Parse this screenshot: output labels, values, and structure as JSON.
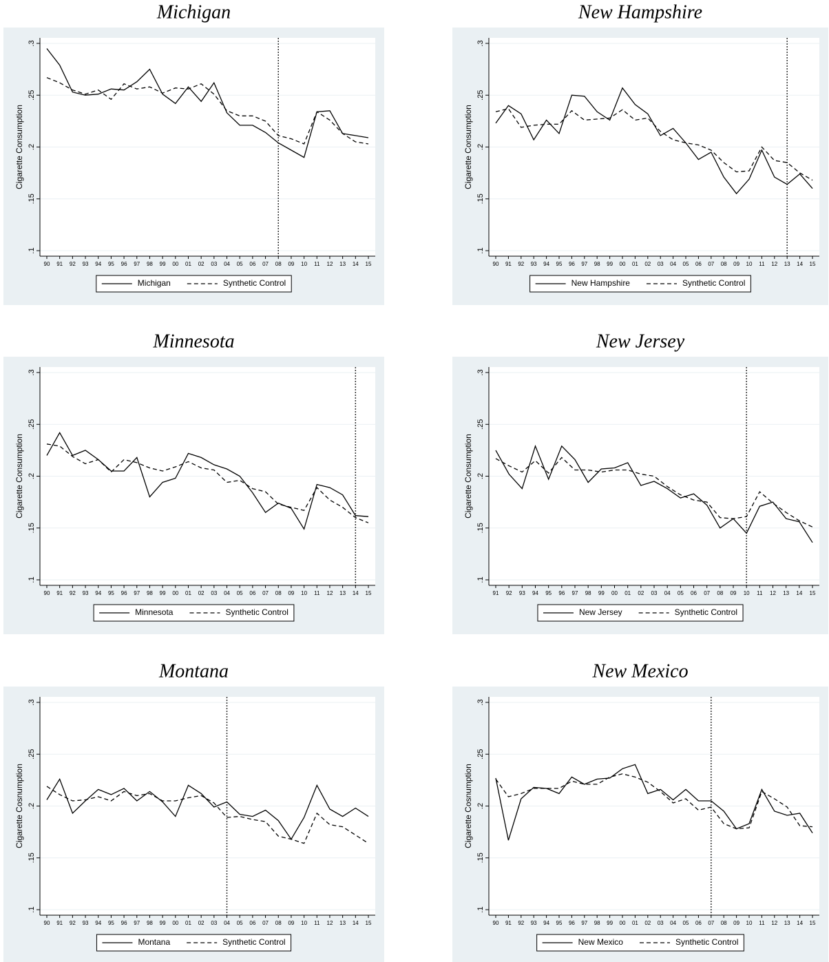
{
  "chart_data": [
    {
      "type": "line",
      "title": "Michigan",
      "ylabel": "Cigarette Consumption",
      "categories": [
        "90",
        "91",
        "92",
        "93",
        "94",
        "95",
        "96",
        "97",
        "98",
        "99",
        "00",
        "01",
        "02",
        "03",
        "04",
        "05",
        "06",
        "07",
        "08",
        "09",
        "10",
        "11",
        "12",
        "13",
        "14",
        "15"
      ],
      "series": [
        {
          "name": "Michigan",
          "color": "#000000",
          "line_style": "solid",
          "values": [
            0.295,
            0.279,
            0.253,
            0.25,
            0.251,
            0.256,
            0.255,
            0.263,
            0.275,
            0.251,
            0.242,
            0.258,
            0.244,
            0.262,
            0.233,
            0.221,
            0.221,
            0.214,
            0.204,
            0.197,
            0.19,
            0.234,
            0.235,
            0.213,
            0.211,
            0.209
          ]
        },
        {
          "name": "Synthetic Control",
          "color": "#000000",
          "line_style": "dashed",
          "values": [
            0.267,
            0.262,
            0.255,
            0.251,
            0.255,
            0.246,
            0.261,
            0.256,
            0.258,
            0.252,
            0.257,
            0.256,
            0.261,
            0.251,
            0.235,
            0.23,
            0.23,
            0.225,
            0.211,
            0.208,
            0.203,
            0.234,
            0.226,
            0.213,
            0.205,
            0.203
          ]
        }
      ],
      "ylim": [
        0.0947,
        0.3053
      ],
      "yticks": [
        {
          "value": 0.1,
          "label": ".1"
        },
        {
          "value": 0.15,
          "label": ".15"
        },
        {
          "value": 0.2,
          "label": ".2"
        },
        {
          "value": 0.25,
          "label": ".25"
        },
        {
          "value": 0.3,
          "label": ".3"
        }
      ],
      "vline": "08",
      "grid": true
    },
    {
      "type": "line",
      "title": "New Hampshire",
      "ylabel": "Cigarette Consumption",
      "categories": [
        "90",
        "91",
        "92",
        "93",
        "94",
        "95",
        "96",
        "97",
        "98",
        "99",
        "00",
        "01",
        "02",
        "03",
        "04",
        "05",
        "06",
        "07",
        "08",
        "09",
        "10",
        "11",
        "12",
        "13",
        "14",
        "15"
      ],
      "series": [
        {
          "name": "New Hampshire",
          "color": "#000000",
          "line_style": "solid",
          "values": [
            0.223,
            0.24,
            0.232,
            0.207,
            0.226,
            0.213,
            0.25,
            0.249,
            0.234,
            0.226,
            0.257,
            0.241,
            0.232,
            0.211,
            0.218,
            0.204,
            0.188,
            0.195,
            0.171,
            0.155,
            0.169,
            0.197,
            0.171,
            0.164,
            0.174,
            0.16
          ]
        },
        {
          "name": "Synthetic Control",
          "color": "#000000",
          "line_style": "dashed",
          "values": [
            0.234,
            0.237,
            0.219,
            0.221,
            0.222,
            0.222,
            0.235,
            0.226,
            0.227,
            0.228,
            0.236,
            0.226,
            0.228,
            0.215,
            0.207,
            0.204,
            0.202,
            0.197,
            0.185,
            0.176,
            0.177,
            0.2,
            0.187,
            0.185,
            0.175,
            0.168
          ]
        }
      ],
      "ylim": [
        0.0947,
        0.3053
      ],
      "yticks": [
        {
          "value": 0.1,
          "label": ".1"
        },
        {
          "value": 0.15,
          "label": ".15"
        },
        {
          "value": 0.2,
          "label": ".2"
        },
        {
          "value": 0.25,
          "label": ".25"
        },
        {
          "value": 0.3,
          "label": ".3"
        }
      ],
      "vline": "13",
      "grid": true
    },
    {
      "type": "line",
      "title": "Minnesota",
      "ylabel": "Cigarette Consumption",
      "categories": [
        "90",
        "91",
        "92",
        "93",
        "94",
        "95",
        "96",
        "97",
        "98",
        "99",
        "00",
        "01",
        "02",
        "03",
        "04",
        "05",
        "06",
        "07",
        "08",
        "09",
        "10",
        "11",
        "12",
        "13",
        "14",
        "15"
      ],
      "series": [
        {
          "name": "Minnesota",
          "color": "#000000",
          "line_style": "solid",
          "values": [
            0.22,
            0.242,
            0.22,
            0.225,
            0.216,
            0.205,
            0.205,
            0.218,
            0.18,
            0.194,
            0.198,
            0.222,
            0.218,
            0.211,
            0.207,
            0.2,
            0.184,
            0.165,
            0.174,
            0.169,
            0.149,
            0.192,
            0.189,
            0.182,
            0.162,
            0.161
          ]
        },
        {
          "name": "Synthetic Control",
          "color": "#000000",
          "line_style": "dashed",
          "values": [
            0.231,
            0.229,
            0.219,
            0.212,
            0.216,
            0.204,
            0.216,
            0.213,
            0.208,
            0.205,
            0.209,
            0.214,
            0.208,
            0.206,
            0.194,
            0.196,
            0.188,
            0.185,
            0.173,
            0.17,
            0.167,
            0.189,
            0.177,
            0.17,
            0.16,
            0.155
          ]
        }
      ],
      "ylim": [
        0.0947,
        0.3053
      ],
      "yticks": [
        {
          "value": 0.1,
          "label": ".1"
        },
        {
          "value": 0.15,
          "label": ".15"
        },
        {
          "value": 0.2,
          "label": ".2"
        },
        {
          "value": 0.25,
          "label": ".25"
        },
        {
          "value": 0.3,
          "label": ".3"
        }
      ],
      "vline": "14",
      "grid": true
    },
    {
      "type": "line",
      "title": "New Jersey",
      "ylabel": "Cigarette Consumption",
      "categories": [
        "91",
        "92",
        "93",
        "94",
        "95",
        "96",
        "97",
        "98",
        "99",
        "00",
        "01",
        "02",
        "03",
        "04",
        "05",
        "06",
        "07",
        "08",
        "09",
        "10",
        "11",
        "12",
        "13",
        "14",
        "15"
      ],
      "series": [
        {
          "name": "New Jersey",
          "color": "#000000",
          "line_style": "solid",
          "values": [
            0.225,
            0.202,
            0.188,
            0.229,
            0.197,
            0.229,
            0.216,
            0.194,
            0.207,
            0.208,
            0.213,
            0.191,
            0.195,
            0.188,
            0.179,
            0.183,
            0.172,
            0.15,
            0.159,
            0.145,
            0.171,
            0.175,
            0.159,
            0.156,
            0.136
          ]
        },
        {
          "name": "Synthetic Control",
          "color": "#000000",
          "line_style": "dashed",
          "values": [
            0.217,
            0.21,
            0.204,
            0.215,
            0.203,
            0.218,
            0.206,
            0.206,
            0.204,
            0.206,
            0.206,
            0.202,
            0.2,
            0.19,
            0.182,
            0.177,
            0.175,
            0.16,
            0.159,
            0.161,
            0.185,
            0.174,
            0.165,
            0.157,
            0.151
          ]
        }
      ],
      "ylim": [
        0.0947,
        0.3053
      ],
      "yticks": [
        {
          "value": 0.1,
          "label": ".1"
        },
        {
          "value": 0.15,
          "label": ".15"
        },
        {
          "value": 0.2,
          "label": ".2"
        },
        {
          "value": 0.25,
          "label": ".25"
        },
        {
          "value": 0.3,
          "label": ".3"
        }
      ],
      "vline": "10",
      "grid": true
    },
    {
      "type": "line",
      "title": "Montana",
      "ylabel": "Cigarette Cosnumption",
      "categories": [
        "90",
        "91",
        "92",
        "93",
        "94",
        "95",
        "96",
        "97",
        "98",
        "99",
        "00",
        "01",
        "02",
        "03",
        "04",
        "05",
        "06",
        "07",
        "08",
        "09",
        "10",
        "11",
        "12",
        "13",
        "14",
        "15"
      ],
      "series": [
        {
          "name": "Montana",
          "color": "#000000",
          "line_style": "solid",
          "values": [
            0.206,
            0.226,
            0.193,
            0.205,
            0.216,
            0.211,
            0.217,
            0.205,
            0.214,
            0.204,
            0.19,
            0.22,
            0.212,
            0.199,
            0.204,
            0.192,
            0.19,
            0.196,
            0.186,
            0.168,
            0.189,
            0.22,
            0.197,
            0.19,
            0.198,
            0.19
          ]
        },
        {
          "name": "Synthetic Control",
          "color": "#000000",
          "line_style": "dashed",
          "values": [
            0.219,
            0.211,
            0.205,
            0.206,
            0.209,
            0.205,
            0.214,
            0.21,
            0.212,
            0.205,
            0.205,
            0.208,
            0.21,
            0.203,
            0.189,
            0.19,
            0.187,
            0.185,
            0.171,
            0.168,
            0.164,
            0.193,
            0.182,
            0.18,
            0.172,
            0.164
          ]
        }
      ],
      "ylim": [
        0.0947,
        0.3053
      ],
      "yticks": [
        {
          "value": 0.1,
          "label": ".1"
        },
        {
          "value": 0.15,
          "label": ".15"
        },
        {
          "value": 0.2,
          "label": ".2"
        },
        {
          "value": 0.25,
          "label": ".25"
        },
        {
          "value": 0.3,
          "label": ".3"
        }
      ],
      "vline": "04",
      "grid": true
    },
    {
      "type": "line",
      "title": "New Mexico",
      "ylabel": "Cigarette Cosnumption",
      "categories": [
        "90",
        "91",
        "92",
        "93",
        "94",
        "95",
        "96",
        "97",
        "98",
        "99",
        "00",
        "01",
        "02",
        "03",
        "04",
        "05",
        "06",
        "07",
        "08",
        "09",
        "10",
        "11",
        "12",
        "13",
        "14",
        "15"
      ],
      "series": [
        {
          "name": "New Mexico",
          "color": "#000000",
          "line_style": "solid",
          "values": [
            0.227,
            0.167,
            0.207,
            0.218,
            0.217,
            0.212,
            0.228,
            0.221,
            0.226,
            0.227,
            0.236,
            0.24,
            0.212,
            0.216,
            0.206,
            0.216,
            0.205,
            0.205,
            0.195,
            0.178,
            0.183,
            0.216,
            0.195,
            0.191,
            0.193,
            0.174
          ]
        },
        {
          "name": "Synthetic Control",
          "color": "#000000",
          "line_style": "dashed",
          "values": [
            0.226,
            0.209,
            0.212,
            0.217,
            0.217,
            0.217,
            0.224,
            0.221,
            0.221,
            0.228,
            0.231,
            0.228,
            0.223,
            0.214,
            0.203,
            0.207,
            0.196,
            0.199,
            0.183,
            0.178,
            0.179,
            0.214,
            0.207,
            0.199,
            0.181,
            0.18
          ]
        }
      ],
      "ylim": [
        0.0947,
        0.3053
      ],
      "yticks": [
        {
          "value": 0.1,
          "label": ".1"
        },
        {
          "value": 0.15,
          "label": ".15"
        },
        {
          "value": 0.2,
          "label": ".2"
        },
        {
          "value": 0.25,
          "label": ".25"
        },
        {
          "value": 0.3,
          "label": ".3"
        }
      ],
      "vline": "07",
      "grid": true
    }
  ]
}
